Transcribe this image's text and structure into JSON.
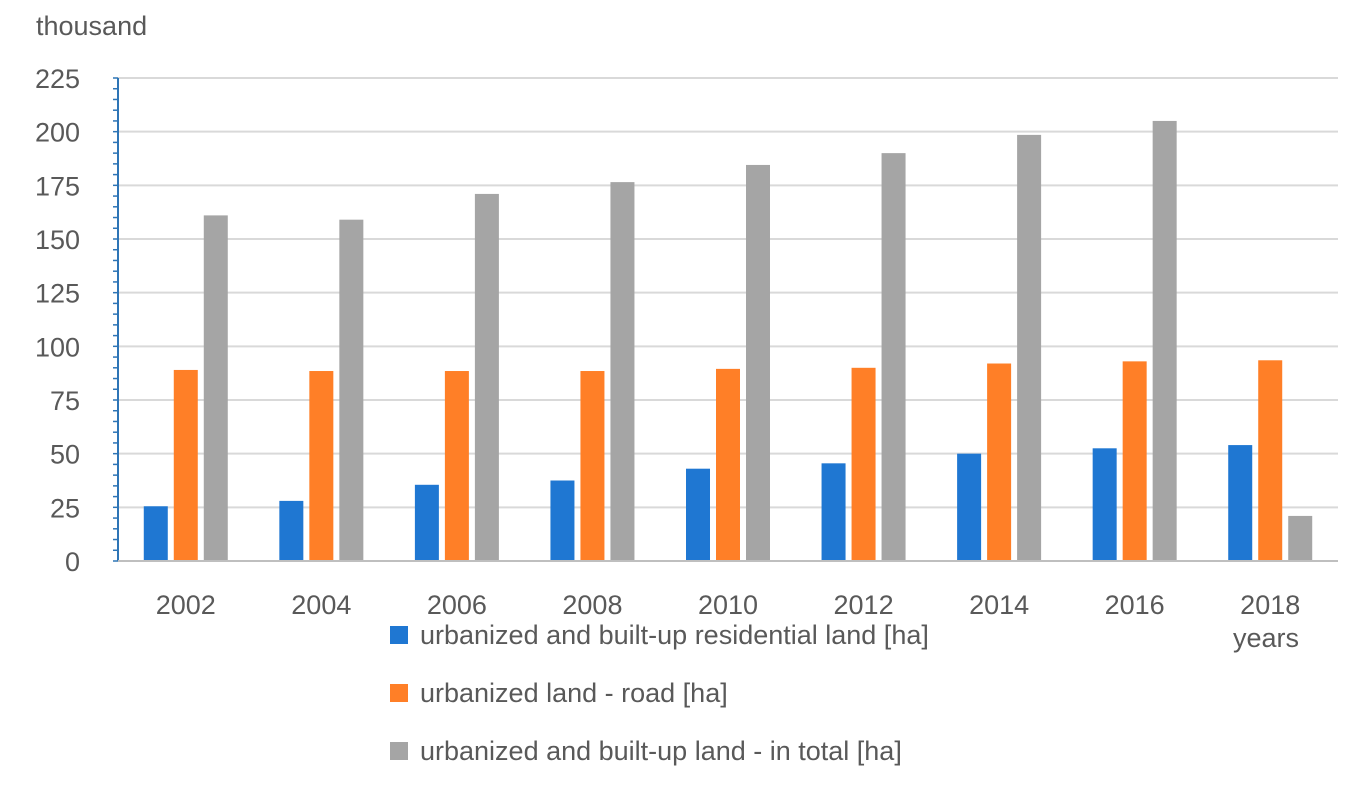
{
  "chart_data": {
    "type": "bar",
    "unit_label": "thousand",
    "xlabel": "years",
    "ylim": [
      0,
      225
    ],
    "yticks": [
      0,
      25,
      50,
      75,
      100,
      125,
      150,
      175,
      200,
      225
    ],
    "grid": true,
    "categories": [
      "2002",
      "2004",
      "2006",
      "2008",
      "2010",
      "2012",
      "2014",
      "2016",
      "2018"
    ],
    "series": [
      {
        "name": "urbanized and built-up residential land [ha]",
        "color": "#1F77D2",
        "values": [
          25.5,
          28,
          35.5,
          37.5,
          43,
          45.5,
          50,
          52.5,
          54
        ]
      },
      {
        "name": "urbanized land - road [ha]",
        "color": "#FF7F27",
        "values": [
          89,
          88.5,
          88.5,
          88.5,
          89.5,
          90,
          92,
          93,
          93.5
        ]
      },
      {
        "name": "urbanized and built-up land - in total [ha]",
        "color": "#A5A5A5",
        "values": [
          161,
          159,
          171,
          176.5,
          184.5,
          190,
          198.5,
          205,
          21
        ]
      }
    ]
  }
}
